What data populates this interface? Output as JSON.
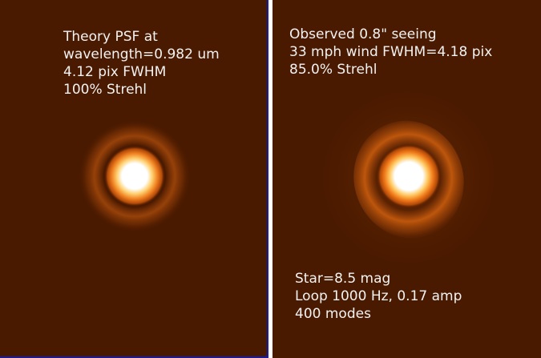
{
  "left_panel": {
    "caption": [
      "Theory PSF at",
      "wavelength=0.982 um",
      "4.12 pix FWHM",
      "100% Strehl"
    ]
  },
  "right_panel": {
    "caption_top": [
      "Observed 0.8\" seeing",
      "33 mph wind FWHM=4.18 pix",
      "85.0% Strehl"
    ],
    "caption_bottom": [
      "Star=8.5 mag",
      "Loop 1000 Hz, 0.17 amp",
      "400 modes"
    ]
  },
  "colors": {
    "background": "#4a1a00",
    "core": "#ffffff",
    "ring": "#c85a10",
    "divider": "#1a1aa0"
  }
}
